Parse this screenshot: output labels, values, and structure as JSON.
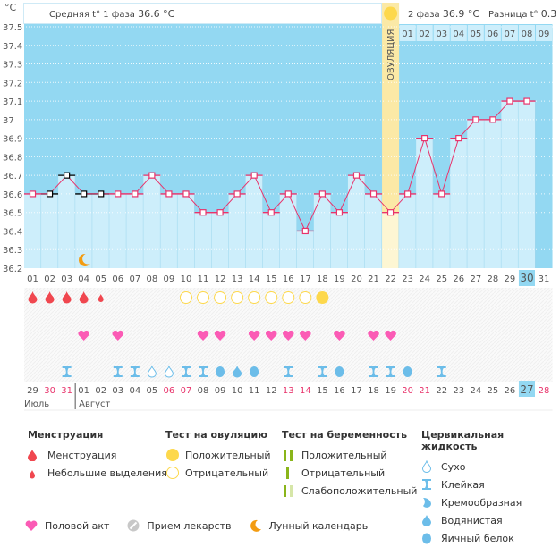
{
  "header": {
    "unit": "°C",
    "phase1_label": "Средняя t° 1 фаза",
    "phase1_value": "36.6 °C",
    "phase2_label": "2 фаза",
    "phase2_value": "36.9 °C",
    "diff_label": "Разница t°",
    "diff_value": "0.3 °C",
    "ovulation_label": "ОВУЛЯЦИЯ",
    "post_ovulation_days": [
      "01",
      "02",
      "03",
      "04",
      "05",
      "06",
      "07",
      "08",
      "09"
    ]
  },
  "colors": {
    "chart_bg": "#93d8f2",
    "bar_fill": "#cdeefb",
    "line": "#e8336b",
    "ovulation": "#fbe9a6",
    "ovulation_light": "#fdf6d3",
    "sun": "#fdd84c",
    "menstruation": "#f0474f",
    "heart": "#fb5bb5",
    "fluid": "#6cbde9",
    "today": "#93d8f2",
    "weekend": "#e8336b"
  },
  "chart_data": {
    "type": "bar+line",
    "title": "",
    "xlabel": "",
    "ylabel": "°C",
    "ylim": [
      36.2,
      37.5
    ],
    "yticks": [
      "36.2",
      "36.3",
      "36.4",
      "36.5",
      "36.6",
      "36.7",
      "36.8",
      "36.9",
      "37",
      "37.1",
      "37.2",
      "37.3",
      "37.4",
      "37.5"
    ],
    "categories": [
      "01",
      "02",
      "03",
      "04",
      "05",
      "06",
      "07",
      "08",
      "09",
      "10",
      "11",
      "12",
      "13",
      "14",
      "15",
      "16",
      "17",
      "18",
      "19",
      "20",
      "21",
      "22",
      "23",
      "24",
      "25",
      "26",
      "27",
      "28",
      "29",
      "30",
      "31"
    ],
    "series": [
      {
        "name": "Базальная температура",
        "values": [
          36.6,
          36.6,
          36.7,
          36.6,
          36.6,
          36.6,
          36.6,
          36.7,
          36.6,
          36.6,
          36.5,
          36.5,
          36.6,
          36.7,
          36.5,
          36.6,
          36.4,
          36.6,
          36.5,
          36.7,
          36.6,
          36.5,
          36.6,
          36.9,
          36.6,
          36.9,
          37.0,
          37.0,
          37.1,
          37.1,
          null
        ]
      }
    ],
    "excluded_days": [
      "02",
      "03",
      "04",
      "05"
    ],
    "ovulation_day": "22",
    "current_day": "30",
    "moon_day": "04",
    "phase1_avg": 36.6,
    "phase2_avg": 36.9
  },
  "calendar": {
    "dates": [
      "29",
      "30",
      "31",
      "01",
      "02",
      "03",
      "04",
      "05",
      "06",
      "07",
      "08",
      "09",
      "10",
      "11",
      "12",
      "13",
      "14",
      "15",
      "16",
      "17",
      "18",
      "19",
      "20",
      "21",
      "22",
      "23",
      "24",
      "25",
      "26",
      "27",
      "28"
    ],
    "weekend_dates_idx": [
      1,
      2,
      8,
      9,
      15,
      16,
      22,
      23,
      30
    ],
    "today_idx": 29,
    "month_prev": "Июль",
    "month_next": "Август",
    "month_break_idx": 3
  },
  "markers": {
    "menstruation": {
      "01": "full",
      "02": "full",
      "03": "full",
      "04": "full",
      "05": "small"
    },
    "ovulation_test": {
      "10": "neg",
      "11": "neg",
      "12": "neg",
      "13": "neg",
      "14": "neg",
      "15": "neg",
      "16": "neg",
      "17": "neg",
      "18": "pos"
    },
    "intercourse": [
      "04",
      "06",
      "11",
      "12",
      "14",
      "15",
      "16",
      "17",
      "19",
      "21",
      "22"
    ],
    "cervical_fluid": {
      "03": "sticky",
      "06": "sticky",
      "07": "sticky",
      "08": "dry",
      "09": "dry",
      "10": "sticky",
      "11": "sticky",
      "12": "egg",
      "13": "watery",
      "14": "egg",
      "16": "sticky",
      "18": "sticky",
      "19": "egg",
      "21": "sticky",
      "22": "sticky",
      "23": "egg",
      "25": "sticky"
    }
  },
  "legend": {
    "menstruation": {
      "title": "Менструация",
      "items": [
        "Менструация",
        "Небольшие выделения"
      ]
    },
    "ovulation_test": {
      "title": "Тест на овуляцию",
      "items": [
        "Положительный",
        "Отрицательный"
      ]
    },
    "pregnancy_test": {
      "title": "Тест на беременность",
      "items": [
        "Положительный",
        "Отрицательный",
        "Слабоположительный"
      ]
    },
    "cervical_fluid": {
      "title": "Цервикальная жидкость",
      "items": [
        "Сухо",
        "Клейкая",
        "Кремообразная",
        "Водянистая",
        "Яичный белок"
      ]
    },
    "bottom": [
      "Половой акт",
      "Прием лекарств",
      "Лунный календарь"
    ]
  }
}
